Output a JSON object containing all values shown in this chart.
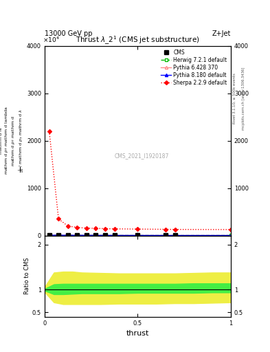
{
  "title": "Thrust $\\lambda\\_2^1$ (CMS jet substructure)",
  "header_left": "13000 GeV pp",
  "header_right": "Z+Jet",
  "xlabel": "thrust",
  "watermark": "CMS_2021_I1920187",
  "rivet_text": "Rivet 3.1.10, ≥ 500k events",
  "mcplots_text": "mcplots.cern.ch [arXiv:1306.3436]",
  "main_ylim": [
    0,
    4000
  ],
  "main_yticks": [
    0,
    1000,
    2000,
    3000,
    4000
  ],
  "ratio_ylim": [
    0.4,
    2.2
  ],
  "ratio_yticks": [
    0.5,
    1.0,
    2.0
  ],
  "xlim": [
    0,
    1
  ],
  "xticks": [
    0,
    0.5,
    1.0
  ],
  "cms_x": [
    0.025,
    0.075,
    0.125,
    0.175,
    0.225,
    0.275,
    0.325,
    0.375,
    0.5,
    0.65,
    0.7
  ],
  "cms_y": [
    5,
    4.5,
    4,
    3.5,
    3,
    2.5,
    2,
    1.5,
    1.2,
    0.8,
    0.5
  ],
  "herwig_x": [
    0.025,
    0.075,
    0.125,
    0.175,
    0.225,
    0.275,
    0.325,
    0.375,
    0.5,
    0.65,
    0.7,
    1.0
  ],
  "herwig_y": [
    5.5,
    4.8,
    4.1,
    3.6,
    3.1,
    2.6,
    2.1,
    1.6,
    1.3,
    0.9,
    0.6,
    0.5
  ],
  "pythia6_x": [
    0.025,
    0.075,
    0.125,
    0.175,
    0.225,
    0.275,
    0.325,
    0.375,
    0.5,
    0.65,
    0.7,
    1.0
  ],
  "pythia6_y": [
    4.8,
    4.3,
    3.8,
    3.3,
    2.8,
    2.3,
    1.8,
    1.3,
    1.0,
    0.7,
    0.4,
    0.3
  ],
  "pythia8_x": [
    0.025,
    0.075,
    0.125,
    0.175,
    0.225,
    0.275,
    0.325,
    0.375,
    0.5,
    0.65,
    0.7,
    1.0
  ],
  "pythia8_y": [
    5.2,
    4.6,
    4.0,
    3.5,
    3.0,
    2.5,
    2.0,
    1.5,
    1.2,
    0.8,
    0.5,
    0.4
  ],
  "sherpa_x": [
    0.025,
    0.075,
    0.125,
    0.175,
    0.225,
    0.275,
    0.325,
    0.375,
    0.5,
    0.65,
    0.7,
    1.0
  ],
  "sherpa_y": [
    2200,
    350,
    200,
    170,
    155,
    150,
    145,
    140,
    135,
    130,
    128,
    125
  ],
  "yellow_band_x": [
    0.0,
    0.05,
    0.1,
    0.15,
    0.2,
    0.3,
    0.4,
    0.5,
    0.6,
    0.7,
    0.8,
    0.9,
    1.0
  ],
  "yellow_band_lo": [
    0.95,
    0.72,
    0.68,
    0.68,
    0.68,
    0.68,
    0.69,
    0.69,
    0.69,
    0.7,
    0.7,
    0.71,
    0.72
  ],
  "yellow_band_hi": [
    1.06,
    1.38,
    1.4,
    1.4,
    1.38,
    1.37,
    1.36,
    1.36,
    1.36,
    1.36,
    1.37,
    1.38,
    1.38
  ],
  "green_band_x": [
    0.0,
    0.05,
    0.1,
    0.15,
    0.2,
    0.3,
    0.4,
    0.5,
    0.6,
    0.7,
    0.8,
    0.9,
    1.0
  ],
  "green_band_lo": [
    0.98,
    0.9,
    0.9,
    0.91,
    0.92,
    0.92,
    0.92,
    0.93,
    0.93,
    0.93,
    0.93,
    0.94,
    0.94
  ],
  "green_band_hi": [
    1.02,
    1.12,
    1.13,
    1.13,
    1.13,
    1.13,
    1.13,
    1.13,
    1.13,
    1.13,
    1.14,
    1.14,
    1.14
  ],
  "colors": {
    "cms": "#000000",
    "herwig": "#00bb00",
    "pythia6": "#ff8888",
    "pythia8": "#0000ff",
    "sherpa": "#ff0000",
    "yellow_band": "#eeee44",
    "green_band": "#44ee44"
  }
}
